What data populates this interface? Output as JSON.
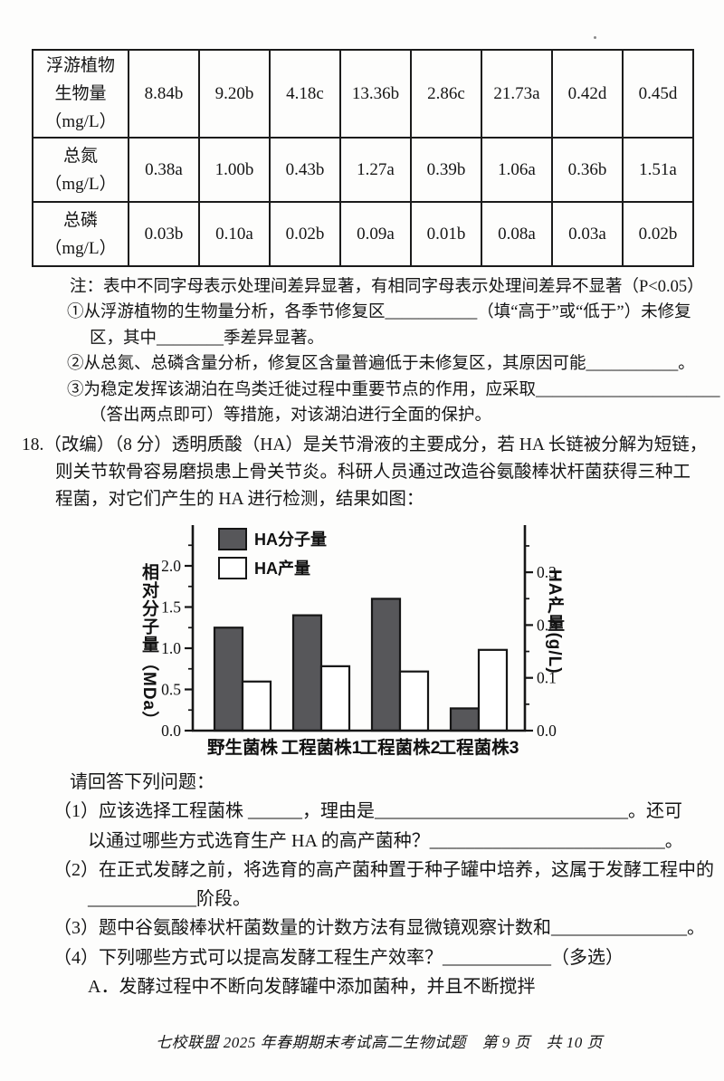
{
  "table": {
    "rows": [
      {
        "header": "浮游植物\n生物量\n（mg/L）",
        "values": [
          "8.84b",
          "9.20b",
          "4.18c",
          "13.36b",
          "2.86c",
          "21.73a",
          "0.42d",
          "0.45d"
        ]
      },
      {
        "header": "总氮\n（mg/L）",
        "values": [
          "0.38a",
          "1.00b",
          "0.43b",
          "1.27a",
          "0.39b",
          "1.06a",
          "0.36b",
          "1.51a"
        ]
      },
      {
        "header": "总磷\n（mg/L）",
        "values": [
          "0.03b",
          "0.10a",
          "0.02b",
          "0.09a",
          "0.01b",
          "0.08a",
          "0.03a",
          "0.02b"
        ]
      }
    ]
  },
  "notes": {
    "line1": "注：表中不同字母表示处理间差异显著，有相同字母表示处理间差异不显著（P<0.05）",
    "line2": "①从浮游植物的生物量分析，各季节修复区___________（填“高于”或“低于”）未修复",
    "line3": "区，其中________季差异显著。",
    "line4": "②从总氮、总磷含量分析，修复区含量普遍低于未修复区，其原因可能___________。",
    "line5": "③为稳定发挥该湖泊在鸟类迁徙过程中重要节点的作用，应采取______________________",
    "line6": "（答出两点即可）等措施，对该湖泊进行全面的保护。"
  },
  "question18": {
    "line1": "18.（改编）（8 分）透明质酸（HA）是关节滑液的主要成分，若 HA 长链被分解为短链，",
    "line2": "则关节软骨容易磨损患上骨关节炎。科研人员通过改造谷氨酸棒状杆菌获得三种工",
    "line3": "程菌，对它们产生的 HA 进行检测，结果如图："
  },
  "chart_data": {
    "type": "bar",
    "categories": [
      "野生菌株",
      "工程菌株1",
      "工程菌株2",
      "工程菌株3"
    ],
    "series": [
      {
        "name": "HA分子量",
        "axis": "left",
        "unit": "MDa",
        "values": [
          1.25,
          1.4,
          1.6,
          0.27
        ],
        "fill": "#57575a"
      },
      {
        "name": "HA产量",
        "axis": "right",
        "unit": "g/L",
        "values": [
          0.093,
          0.122,
          0.112,
          0.153
        ],
        "fill": "#ffffff"
      }
    ],
    "left_axis": {
      "label": "相对分子量（MDa）",
      "ticks": [
        "0.0",
        "0.5",
        "1.0",
        "1.5",
        "2.0"
      ],
      "minor_ticks": [
        0.25,
        0.75,
        1.25,
        1.75,
        2.25
      ],
      "range": [
        0,
        2.47
      ]
    },
    "right_axis": {
      "label": "HA产量(g/L)",
      "ticks": [
        "0.0",
        "0.1",
        "0.2",
        "0.3"
      ],
      "minor_ticks": [
        0.05,
        0.15,
        0.25,
        0.35
      ],
      "range": [
        0,
        0.39
      ]
    },
    "legend_position": "top-left",
    "grid": false,
    "ink_color": "#161616"
  },
  "questions": {
    "intro": "请回答下列问题：",
    "q1_line1": "（1）应该选择工程菌株 ______，理由是____________________________。还可",
    "q1_line2": "以通过哪些方式选育生产 HA 的高产菌种？__________________________。",
    "q2_line1": "（2）在正式发酵之前，将选育的高产菌种置于种子罐中培养，这属于发酵工程中的",
    "q2_line2": "____________阶段。",
    "q3": "（3）题中谷氨酸棒状杆菌数量的计数方法有显微镜观察计数和_______________。",
    "q4": "（4）下列哪些方式可以提高发酵工程生产效率？____________（多选）",
    "optionA": "A．发酵过程中不断向发酵罐中添加菌种，并且不断搅拌"
  },
  "footer": "七校联盟 2025 年春期期末考试高二生物试题　第 9 页　共 10 页"
}
